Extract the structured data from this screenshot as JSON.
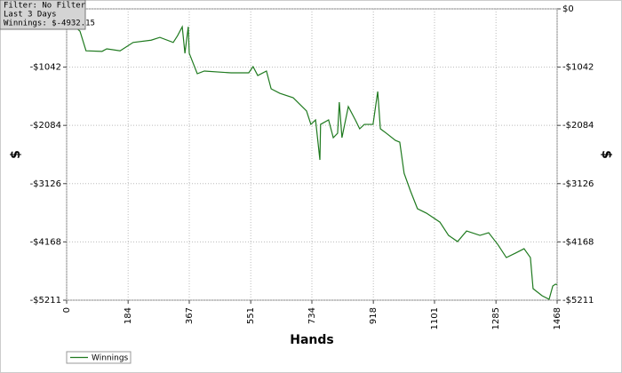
{
  "chart_data": {
    "type": "line",
    "annotations": [
      "Filter: No Filter",
      "Last  3 Days",
      "Winnings: $-4932.15"
    ],
    "x_label": "Hands",
    "y_label": "$",
    "x": [
      0,
      40,
      58,
      106,
      120,
      160,
      199,
      253,
      279,
      319,
      332,
      346,
      354,
      364,
      367,
      391,
      412,
      492,
      545,
      558,
      572,
      598,
      612,
      638,
      678,
      718,
      731,
      745,
      758,
      760,
      784,
      798,
      811,
      816,
      824,
      843,
      864,
      877,
      891,
      917,
      931,
      939,
      957,
      984,
      997,
      1010,
      1029,
      1050,
      1077,
      1117,
      1143,
      1170,
      1197,
      1237,
      1263,
      1290,
      1316,
      1343,
      1369,
      1388,
      1396,
      1423,
      1444,
      1455,
      1463,
      1468
    ],
    "series": [
      {
        "name": "Winnings",
        "color": "#1f7a1f",
        "values": [
          -190,
          -400,
          -750,
          -760,
          -715,
          -750,
          -600,
          -560,
          -510,
          -600,
          -480,
          -320,
          -795,
          -320,
          -795,
          -1160,
          -1112,
          -1144,
          -1144,
          -1033,
          -1192,
          -1112,
          -1430,
          -1510,
          -1589,
          -1827,
          -2066,
          -1986,
          -2701,
          -2066,
          -1986,
          -2304,
          -2225,
          -1668,
          -2304,
          -1748,
          -1986,
          -2145,
          -2066,
          -2066,
          -1478,
          -2145,
          -2225,
          -2352,
          -2384,
          -2940,
          -3257,
          -3575,
          -3655,
          -3814,
          -4052,
          -4163,
          -3973,
          -4052,
          -4004,
          -4211,
          -4449,
          -4370,
          -4290,
          -4449,
          -5005,
          -5132,
          -5196,
          -4957,
          -4925,
          -4932.15
        ]
      }
    ],
    "xlim": [
      0,
      1468
    ],
    "xticks": [
      0,
      184,
      367,
      551,
      734,
      918,
      1101,
      1285,
      1468
    ],
    "ylim": [
      -5211,
      0
    ],
    "yticks": [
      {
        "value": 0,
        "label": "$0"
      },
      {
        "value": -1042,
        "label": "-$1042"
      },
      {
        "value": -2084,
        "label": "-$2084"
      },
      {
        "value": -3126,
        "label": "-$3126"
      },
      {
        "value": -4168,
        "label": "-$4168"
      },
      {
        "value": -5211,
        "label": "-$5211"
      }
    ],
    "grid": true,
    "legend": "bottom-left"
  }
}
